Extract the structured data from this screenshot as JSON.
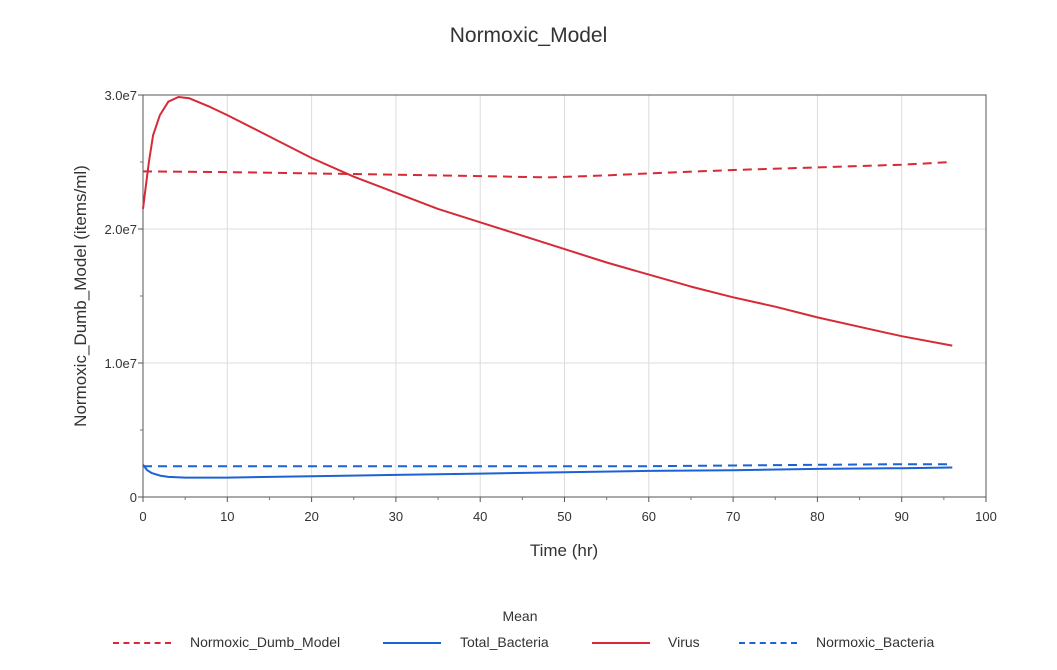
{
  "chart_data": {
    "type": "line",
    "title": "Normoxic_Model",
    "xlabel": "Time (hr)",
    "ylabel": "Normoxic_Dumb_Model (items/ml)",
    "xlim": [
      0,
      100
    ],
    "ylim": [
      0,
      30000000
    ],
    "x_ticks": [
      "0",
      "10",
      "20",
      "30",
      "40",
      "50",
      "60",
      "70",
      "80",
      "90",
      "100"
    ],
    "y_ticks": [
      "0",
      "1.0e7",
      "2.0e7",
      "3.0e7"
    ],
    "grid": true,
    "legend_title": "Mean",
    "legend_position": "bottom",
    "series": [
      {
        "name": "Normoxic_Dumb_Model",
        "color": "#d62a36",
        "style": "dashed",
        "points": [
          [
            0,
            24300000
          ],
          [
            10,
            24250000
          ],
          [
            20,
            24150000
          ],
          [
            30,
            24050000
          ],
          [
            40,
            23950000
          ],
          [
            48,
            23850000
          ],
          [
            55,
            24000000
          ],
          [
            60,
            24150000
          ],
          [
            70,
            24400000
          ],
          [
            80,
            24600000
          ],
          [
            90,
            24800000
          ],
          [
            96,
            25000000
          ]
        ]
      },
      {
        "name": "Total_Bacteria",
        "color": "#1a62d6",
        "style": "solid",
        "points": [
          [
            0,
            2400000
          ],
          [
            0.5,
            2000000
          ],
          [
            1,
            1800000
          ],
          [
            2,
            1600000
          ],
          [
            3,
            1500000
          ],
          [
            5,
            1450000
          ],
          [
            10,
            1450000
          ],
          [
            20,
            1550000
          ],
          [
            30,
            1650000
          ],
          [
            40,
            1750000
          ],
          [
            50,
            1850000
          ],
          [
            60,
            1950000
          ],
          [
            70,
            2000000
          ],
          [
            80,
            2100000
          ],
          [
            90,
            2150000
          ],
          [
            96,
            2200000
          ]
        ]
      },
      {
        "name": "Virus",
        "color": "#d62a36",
        "style": "solid",
        "points": [
          [
            0,
            21500000
          ],
          [
            0.3,
            23000000
          ],
          [
            0.7,
            25000000
          ],
          [
            1.2,
            27000000
          ],
          [
            2,
            28500000
          ],
          [
            3,
            29500000
          ],
          [
            4.2,
            29850000
          ],
          [
            5.5,
            29750000
          ],
          [
            8,
            29100000
          ],
          [
            10,
            28500000
          ],
          [
            15,
            26900000
          ],
          [
            20,
            25300000
          ],
          [
            25,
            23900000
          ],
          [
            30,
            22700000
          ],
          [
            35,
            21500000
          ],
          [
            40,
            20500000
          ],
          [
            45,
            19500000
          ],
          [
            50,
            18500000
          ],
          [
            55,
            17500000
          ],
          [
            60,
            16600000
          ],
          [
            65,
            15700000
          ],
          [
            70,
            14900000
          ],
          [
            75,
            14200000
          ],
          [
            80,
            13400000
          ],
          [
            85,
            12700000
          ],
          [
            90,
            12000000
          ],
          [
            96,
            11300000
          ]
        ]
      },
      {
        "name": "Normoxic_Bacteria",
        "color": "#1a62d6",
        "style": "dashed",
        "points": [
          [
            0,
            2300000
          ],
          [
            10,
            2300000
          ],
          [
            20,
            2300000
          ],
          [
            30,
            2300000
          ],
          [
            40,
            2300000
          ],
          [
            50,
            2300000
          ],
          [
            60,
            2300000
          ],
          [
            70,
            2350000
          ],
          [
            80,
            2400000
          ],
          [
            90,
            2450000
          ],
          [
            96,
            2450000
          ]
        ]
      }
    ]
  }
}
